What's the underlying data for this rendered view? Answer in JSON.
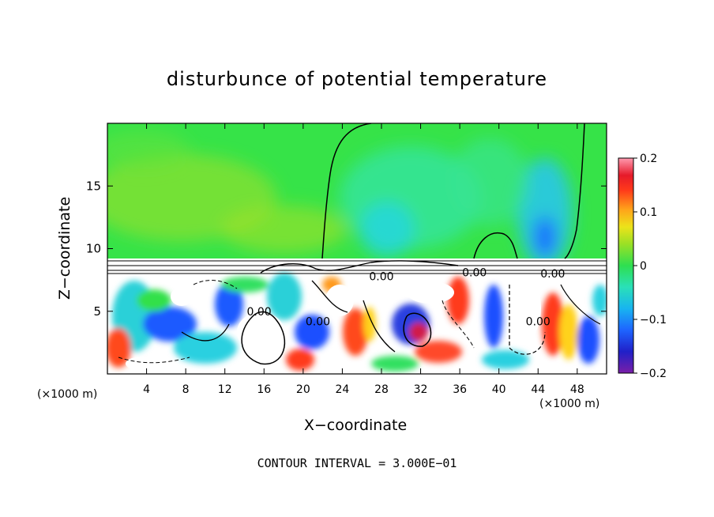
{
  "chart_data": {
    "type": "heatmap",
    "title": "disturbunce of potential temperature",
    "xlabel": "X−coordinate",
    "ylabel": "Z−coordinate",
    "x_unit": "(×1000 m)",
    "y_unit": "(×1000 m)",
    "xlim": [
      0,
      51
    ],
    "ylim": [
      0,
      20
    ],
    "x_ticks": [
      4,
      8,
      12,
      16,
      20,
      24,
      28,
      32,
      36,
      40,
      44,
      48
    ],
    "y_ticks": [
      5,
      10,
      15
    ],
    "colorbar": {
      "range": [
        -0.2,
        0.2
      ],
      "tick_values": [
        0.2,
        0.1,
        0,
        -0.1,
        -0.2
      ],
      "tick_labels": [
        "0.2",
        "0.1",
        "0",
        "−0.1",
        "−0.2"
      ]
    },
    "contour_labels": [
      {
        "text": "0.00",
        "x": 15.5,
        "z": 5.0
      },
      {
        "text": "0.00",
        "x": 21.5,
        "z": 4.2
      },
      {
        "text": "0.00",
        "x": 28.0,
        "z": 7.8
      },
      {
        "text": "0.00",
        "x": 37.5,
        "z": 8.1
      },
      {
        "text": "0.00",
        "x": 45.5,
        "z": 8.0
      },
      {
        "text": "0.00",
        "x": 44.0,
        "z": 4.2
      }
    ],
    "footer": "CONTOUR INTERVAL = 3.000E−01"
  }
}
